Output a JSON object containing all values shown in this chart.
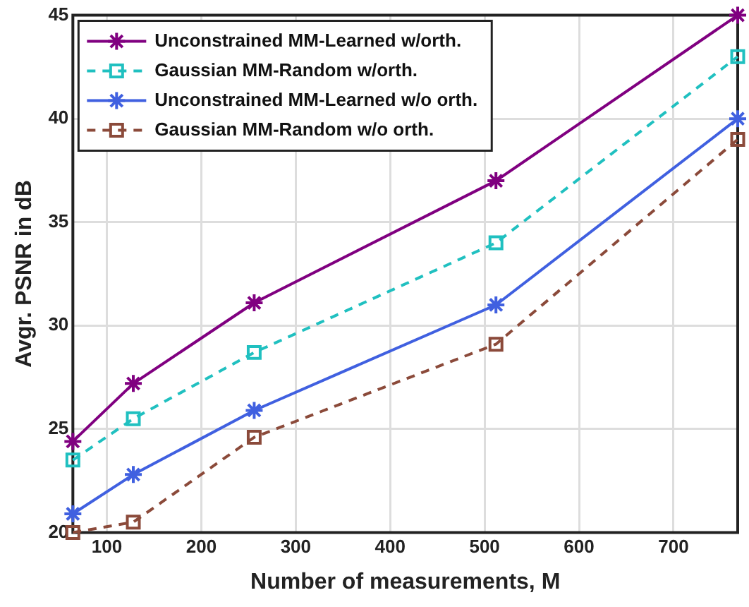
{
  "chart_data": {
    "type": "line",
    "xlabel": "Number of measurements, M",
    "ylabel": "Avgr. PSNR in dB",
    "x": [
      64,
      128,
      256,
      512,
      768
    ],
    "series": [
      {
        "name": "Unconstrained MM-Learned w/orth.",
        "color": "#800080",
        "marker": "cross",
        "line_style": "solid",
        "values": [
          24.4,
          27.2,
          31.1,
          37.0,
          45.0
        ]
      },
      {
        "name": "Gaussian MM-Random w/orth.",
        "color": "#20c0c0",
        "marker": "square",
        "line_style": "dashed",
        "values": [
          23.5,
          25.5,
          28.7,
          34.0,
          43.0
        ]
      },
      {
        "name": "Unconstrained MM-Learned w/o orth.",
        "color": "#4060e0",
        "marker": "cross",
        "line_style": "solid",
        "values": [
          20.9,
          22.8,
          25.9,
          31.0,
          40.0
        ]
      },
      {
        "name": "Gaussian MM-Random w/o orth.",
        "color": "#8b4a3a",
        "marker": "square",
        "line_style": "dashed",
        "values": [
          20.0,
          20.5,
          24.6,
          29.1,
          39.0
        ]
      }
    ],
    "xlim": [
      64,
      768
    ],
    "xticks": [
      100,
      200,
      300,
      400,
      500,
      600,
      700
    ],
    "ylim": [
      20,
      45
    ],
    "yticks": [
      20,
      25,
      30,
      35,
      40,
      45
    ],
    "grid": true,
    "legend": "top left"
  }
}
